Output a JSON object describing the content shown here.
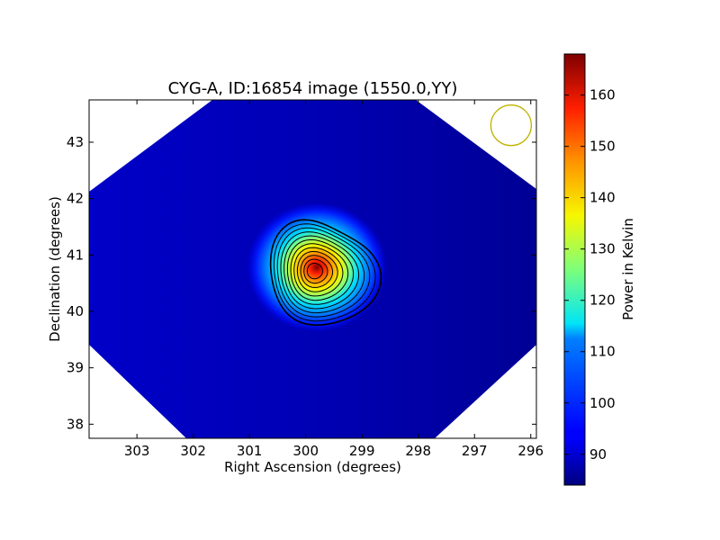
{
  "chart_data": {
    "type": "heatmap",
    "title": "CYG-A, ID:16854 image (1550.0,YY)",
    "xlabel": "Right Ascension (degrees)",
    "ylabel": "Declination (degrees)",
    "xlim": [
      303.85,
      295.9
    ],
    "ylim": [
      37.75,
      43.75
    ],
    "xticks": [
      303,
      302,
      301,
      300,
      299,
      298,
      297,
      296
    ],
    "yticks": [
      38,
      39,
      40,
      41,
      42,
      43
    ],
    "x_inverted": true,
    "colormap": "jet",
    "colorbar": {
      "label": "Power in Kelvin",
      "range": [
        84,
        168
      ],
      "ticks": [
        90,
        100,
        110,
        120,
        130,
        140,
        150,
        160
      ]
    },
    "source_peak": {
      "ra": 299.85,
      "dec": 40.72,
      "value": 168
    },
    "background_level": 88,
    "contours": {
      "color": "#000000",
      "count": 12
    },
    "beam_marker": {
      "ra": 296.35,
      "dec": 43.3,
      "radius_deg": 0.36,
      "color": "#c0b400"
    },
    "grid": false
  }
}
